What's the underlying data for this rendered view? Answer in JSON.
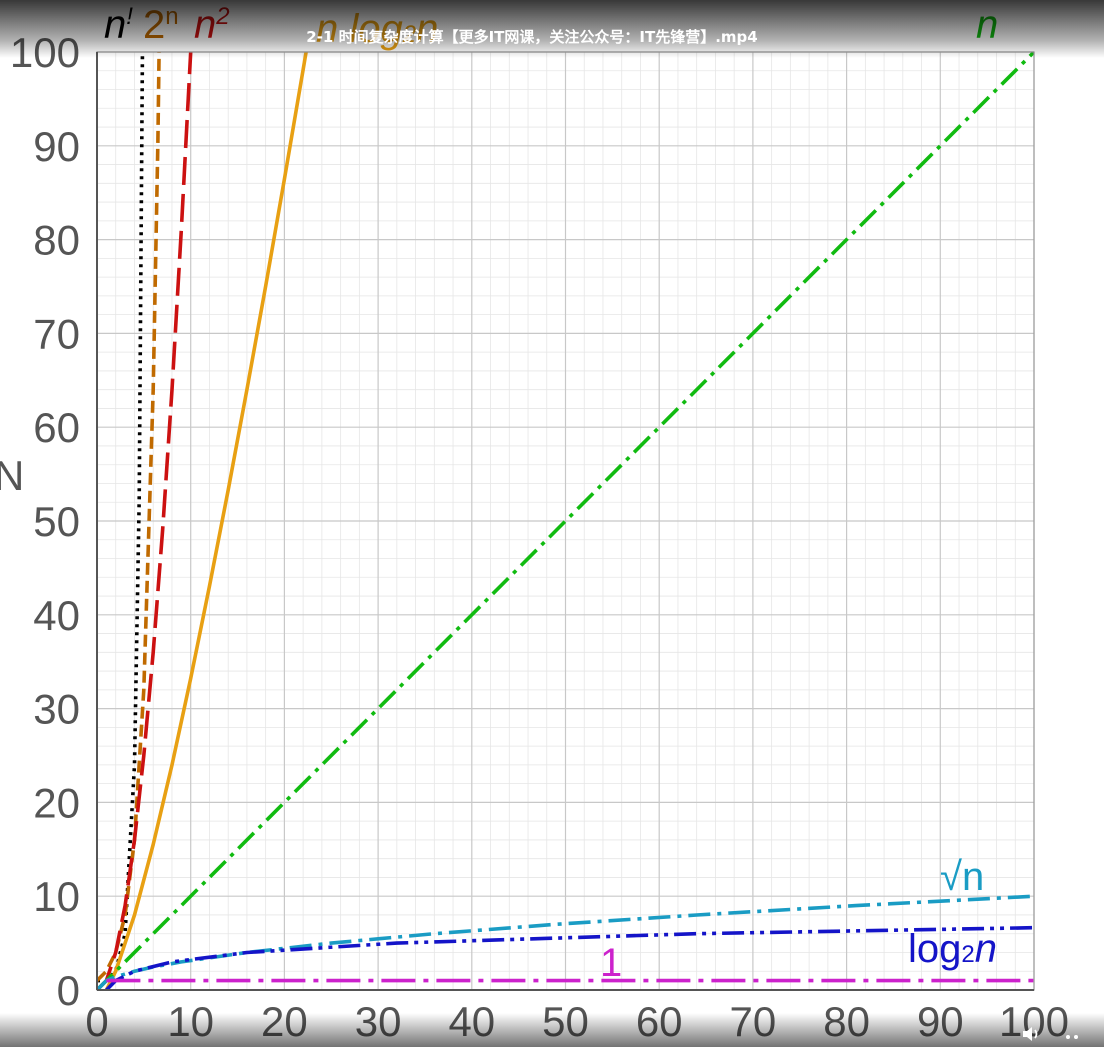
{
  "video": {
    "title": "2-1 时间复杂度计算【更多IT网课，关注公众号：IT先锋营】.mp4",
    "controls": {
      "volume_icon": "volume-icon",
      "more_icon": "more-icon"
    }
  },
  "chart_data": {
    "type": "line",
    "xlabel": "",
    "ylabel": "N",
    "xlim": [
      0,
      100
    ],
    "ylim": [
      0,
      100
    ],
    "xticks": [
      "0",
      "10",
      "20",
      "30",
      "40",
      "50",
      "60",
      "70",
      "80",
      "90",
      "100"
    ],
    "yticks": [
      "0",
      "10",
      "20",
      "30",
      "40",
      "50",
      "60",
      "70",
      "80",
      "90",
      "100"
    ],
    "grid": true,
    "series": [
      {
        "name": "n!",
        "label_base": "n",
        "label_suffix": "!",
        "color": "#000000",
        "style": "dotted",
        "x": [
          0,
          1,
          2,
          3,
          4,
          4.5,
          5
        ],
        "y": [
          1,
          1,
          2,
          6,
          24,
          52.34,
          120
        ]
      },
      {
        "name": "2ⁿ",
        "label_base": "2",
        "label_suffix": "n",
        "color": "#c06a00",
        "style": "dashed",
        "x": [
          0,
          1,
          2,
          3,
          4,
          5,
          6,
          6.5,
          7
        ],
        "y": [
          1,
          2,
          4,
          8,
          16,
          32,
          64,
          90.51,
          128
        ]
      },
      {
        "name": "n²",
        "label_base": "n",
        "label_suffix": "2",
        "color": "#cc1111",
        "style": "longdash",
        "x": [
          0,
          1,
          2,
          3,
          4,
          5,
          6,
          7,
          8,
          9,
          10,
          11
        ],
        "y": [
          0,
          1,
          4,
          9,
          16,
          25,
          36,
          49,
          64,
          81,
          100,
          121
        ]
      },
      {
        "name": "n log₂n",
        "label_base": "n log",
        "label_suffix": "2",
        "label_tail": "n",
        "color": "#e8a013",
        "style": "solid",
        "x": [
          1,
          2,
          4,
          6,
          8,
          10,
          12,
          14,
          16,
          18,
          20,
          22,
          23
        ],
        "y": [
          0,
          2,
          8,
          15.51,
          24,
          33.22,
          43.02,
          53.3,
          64,
          75.06,
          86.44,
          98.1,
          104.03
        ]
      },
      {
        "name": "n",
        "label_base": "n",
        "color": "#11bb11",
        "style": "dashdot",
        "x": [
          0,
          100
        ],
        "y": [
          0,
          100
        ]
      },
      {
        "name": "√n",
        "label_base": "√n",
        "color": "#1a9cc4",
        "style": "dashdot",
        "x": [
          0,
          1,
          2,
          4,
          6,
          9,
          16,
          25,
          36,
          49,
          64,
          81,
          100
        ],
        "y": [
          0,
          1,
          1.41,
          2,
          2.45,
          3,
          4,
          5,
          6,
          7,
          8,
          9,
          10
        ]
      },
      {
        "name": "log₂n",
        "label_base": "log",
        "label_suffix": "2",
        "label_tail": "n",
        "color": "#1414c8",
        "style": "dashdotdot",
        "x": [
          1,
          2,
          4,
          8,
          16,
          32,
          64,
          100
        ],
        "y": [
          0,
          1,
          2,
          3,
          4,
          5,
          6,
          6.64
        ]
      },
      {
        "name": "1",
        "label_base": "1",
        "color": "#cc22cc",
        "style": "longdashdot",
        "x": [
          1,
          100
        ],
        "y": [
          1,
          1
        ]
      }
    ],
    "colors": {
      "grid_major": "#c8c8c8",
      "grid_minor": "#e6e6e6",
      "tick_text": "#555555"
    }
  }
}
